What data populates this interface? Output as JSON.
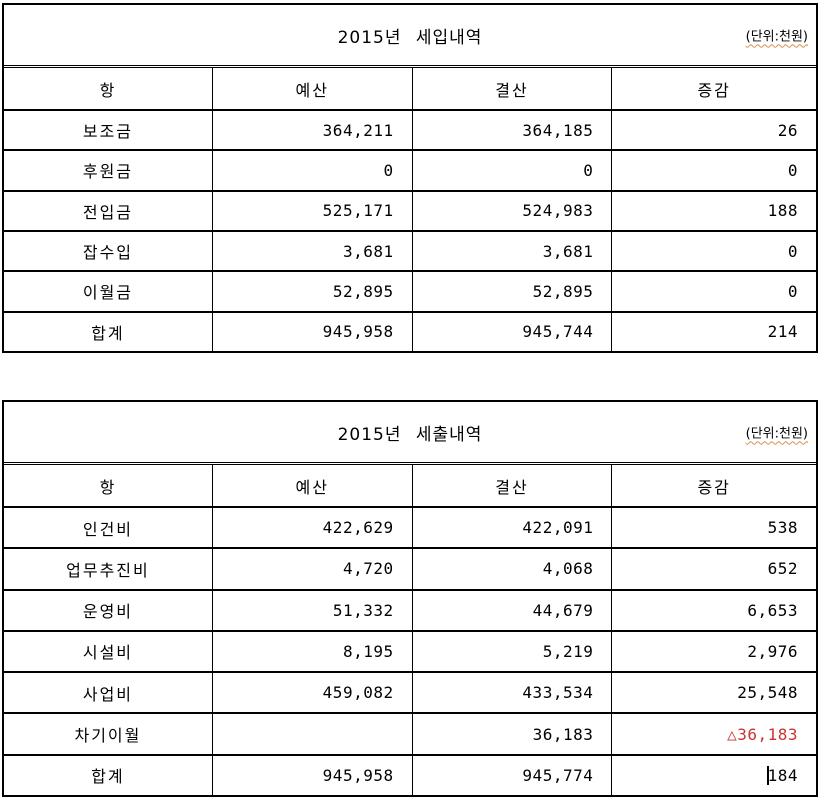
{
  "unit_label": "(단위:천원)",
  "columns": {
    "item": "항",
    "budget": "예산",
    "settlement": "결산",
    "diff": "증감"
  },
  "income_table": {
    "title": "2015년 세입내역",
    "rows": [
      {
        "item": "보조금",
        "budget": "364,211",
        "settlement": "364,185",
        "diff": "26"
      },
      {
        "item": "후원금",
        "budget": "0",
        "settlement": "0",
        "diff": "0"
      },
      {
        "item": "전입금",
        "budget": "525,171",
        "settlement": "524,983",
        "diff": "188"
      },
      {
        "item": "잡수입",
        "budget": "3,681",
        "settlement": "3,681",
        "diff": "0"
      },
      {
        "item": "이월금",
        "budget": "52,895",
        "settlement": "52,895",
        "diff": "0"
      },
      {
        "item": "합계",
        "budget": "945,958",
        "settlement": "945,744",
        "diff": "214"
      }
    ]
  },
  "expense_table": {
    "title": "2015년 세출내역",
    "rows": [
      {
        "item": "인건비",
        "budget": "422,629",
        "settlement": "422,091",
        "diff": "538"
      },
      {
        "item": "업무추진비",
        "budget": "4,720",
        "settlement": "4,068",
        "diff": "652"
      },
      {
        "item": "운영비",
        "budget": "51,332",
        "settlement": "44,679",
        "diff": "6,653"
      },
      {
        "item": "시설비",
        "budget": "8,195",
        "settlement": "5,219",
        "diff": "2,976"
      },
      {
        "item": "사업비",
        "budget": "459,082",
        "settlement": "433,534",
        "diff": "25,548"
      },
      {
        "item": "차기이월",
        "budget": "",
        "settlement": "36,183",
        "diff": "△36,183",
        "diff_red": true
      },
      {
        "item": "합계",
        "budget": "945,958",
        "settlement": "945,774",
        "diff": "184",
        "diff_caret": true
      }
    ]
  },
  "colors": {
    "diff_negative": "#cc3333",
    "spellcheck_squiggle": "#d9904a",
    "text": "#000000",
    "border": "#000000"
  }
}
